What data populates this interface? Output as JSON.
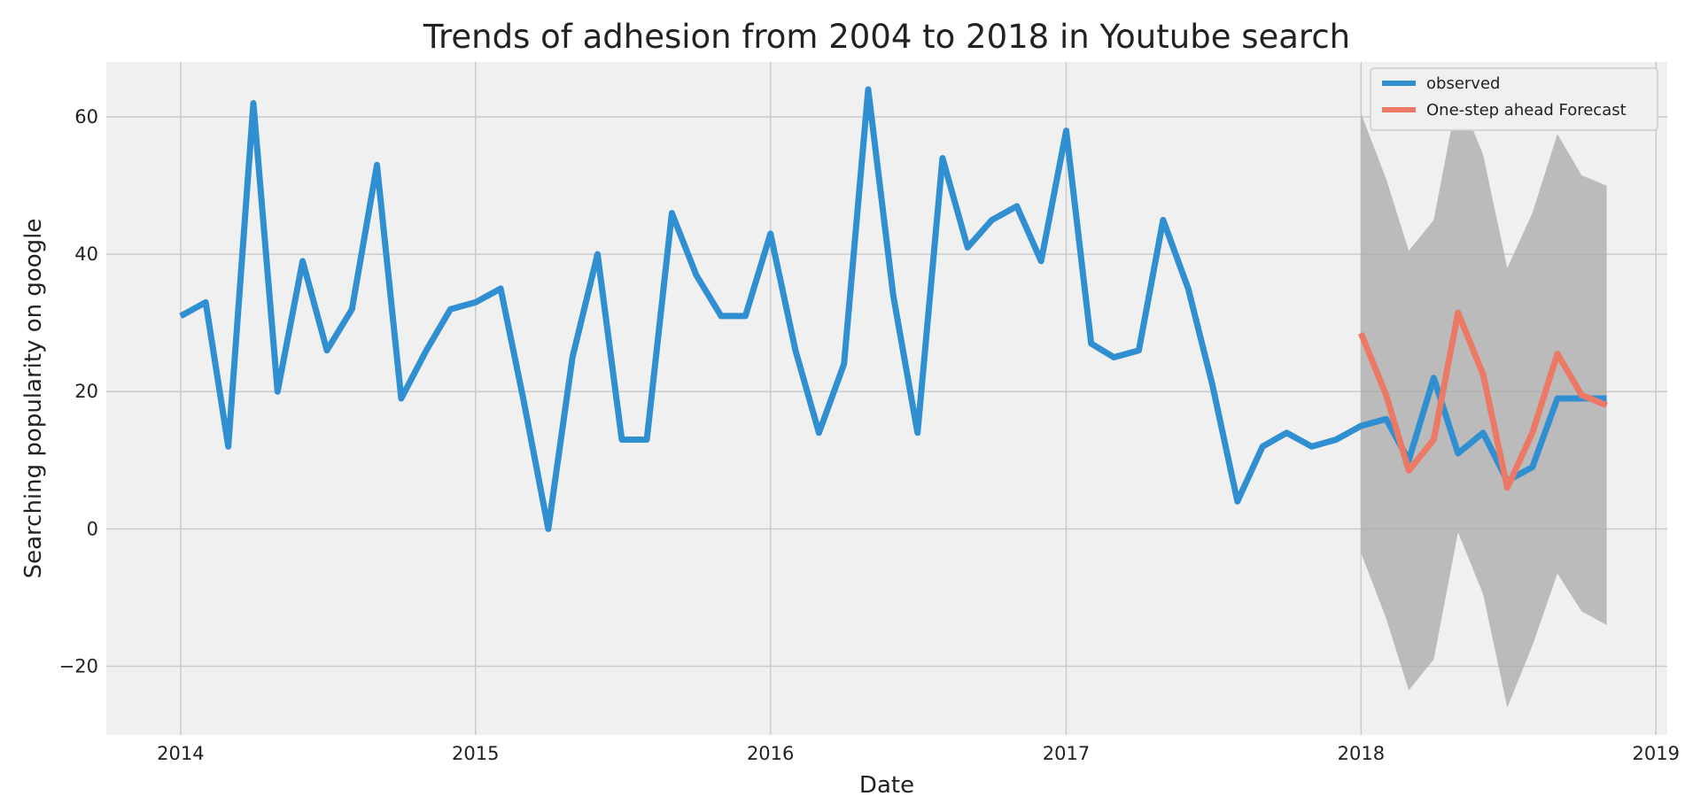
{
  "chart_data": {
    "type": "line",
    "title": "Trends of adhesion from 2004 to 2018 in Youtube search",
    "xlabel": "Date",
    "ylabel": "Searching popularity on google",
    "x_axis": {
      "type": "date",
      "range": [
        "2013-10-01",
        "2019-01-15"
      ],
      "ticks": [
        "2014",
        "2015",
        "2016",
        "2017",
        "2018",
        "2019"
      ]
    },
    "y_axis": {
      "range": [
        -30,
        68
      ],
      "ticks": [
        -20,
        0,
        20,
        40,
        60
      ],
      "tick_labels": [
        "−20",
        "0",
        "20",
        "40",
        "60"
      ]
    },
    "grid": true,
    "legend": {
      "position": "top-right"
    },
    "series": [
      {
        "name": "observed",
        "color": "#2f8fd1",
        "x": [
          "2014-01-01",
          "2014-02-01",
          "2014-03-01",
          "2014-04-01",
          "2014-05-01",
          "2014-06-01",
          "2014-07-01",
          "2014-08-01",
          "2014-09-01",
          "2014-10-01",
          "2014-11-01",
          "2014-12-01",
          "2015-01-01",
          "2015-02-01",
          "2015-03-01",
          "2015-04-01",
          "2015-05-01",
          "2015-06-01",
          "2015-07-01",
          "2015-08-01",
          "2015-09-01",
          "2015-10-01",
          "2015-11-01",
          "2015-12-01",
          "2016-01-01",
          "2016-02-01",
          "2016-03-01",
          "2016-04-01",
          "2016-05-01",
          "2016-06-01",
          "2016-07-01",
          "2016-08-01",
          "2016-09-01",
          "2016-10-01",
          "2016-11-01",
          "2016-12-01",
          "2017-01-01",
          "2017-02-01",
          "2017-03-01",
          "2017-04-01",
          "2017-05-01",
          "2017-06-01",
          "2017-07-01",
          "2017-08-01",
          "2017-09-01",
          "2017-10-01",
          "2017-11-01",
          "2017-12-01",
          "2018-01-01",
          "2018-02-01",
          "2018-03-01",
          "2018-04-01",
          "2018-05-01",
          "2018-06-01",
          "2018-07-01",
          "2018-08-01",
          "2018-09-01",
          "2018-10-01",
          "2018-11-01"
        ],
        "values": [
          31,
          33,
          12,
          62,
          20,
          39,
          26,
          32,
          53,
          19,
          26,
          32,
          33,
          35,
          19,
          0,
          25,
          40,
          13,
          13,
          46,
          37,
          31,
          31,
          43,
          26,
          14,
          24,
          64,
          34,
          14,
          54,
          41,
          45,
          47,
          39,
          58,
          27,
          25,
          26,
          45,
          35,
          21,
          4,
          12,
          14,
          12,
          13,
          15,
          16,
          10,
          22,
          11,
          14,
          7,
          9,
          19,
          19,
          19
        ]
      },
      {
        "name": "One-step ahead Forecast",
        "color": "#ec7965",
        "x": [
          "2018-01-01",
          "2018-02-01",
          "2018-03-01",
          "2018-04-01",
          "2018-05-01",
          "2018-06-01",
          "2018-07-01",
          "2018-08-01",
          "2018-09-01",
          "2018-10-01",
          "2018-11-01"
        ],
        "values": [
          28.5,
          19.5,
          8.5,
          13,
          31.5,
          22.5,
          6,
          14,
          25.5,
          19.5,
          18
        ]
      }
    ],
    "confidence_interval": {
      "color": "#a9a9a9",
      "x": [
        "2018-01-01",
        "2018-02-01",
        "2018-03-01",
        "2018-04-01",
        "2018-05-01",
        "2018-06-01",
        "2018-07-01",
        "2018-08-01",
        "2018-09-01",
        "2018-10-01",
        "2018-11-01"
      ],
      "lower": [
        -3.5,
        -13,
        -23.5,
        -19,
        -0.5,
        -9.5,
        -26,
        -17,
        -6.5,
        -12,
        -14
      ],
      "upper": [
        60.5,
        51,
        40.5,
        45,
        63.5,
        54.5,
        38,
        46,
        57.5,
        51.5,
        50
      ]
    }
  }
}
